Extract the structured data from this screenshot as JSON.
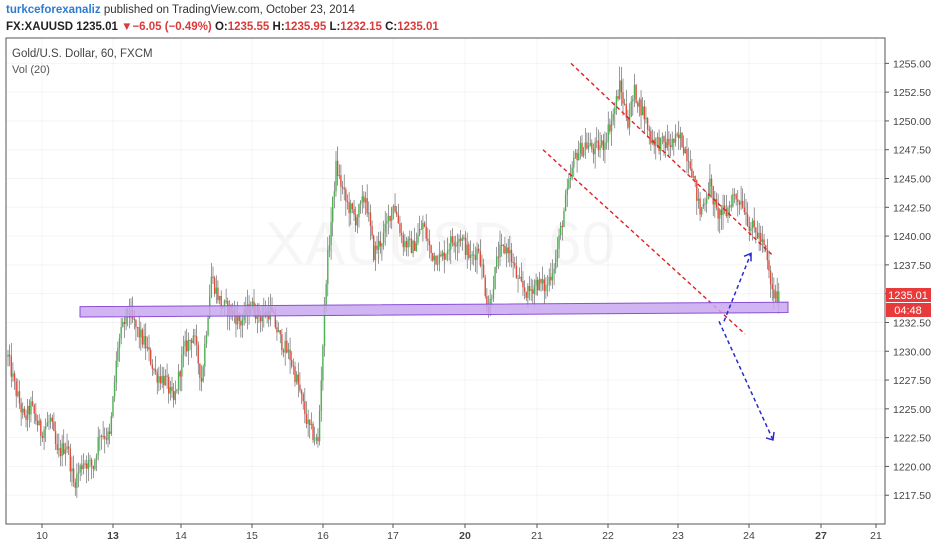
{
  "header": {
    "author": "turkceforexanaliz",
    "published_text": "published on TradingView.com, October 23, 2014",
    "symbol": "FX:XAUUSD",
    "last": "1235.01",
    "arrow": "▼",
    "change": "−6.05 (−0.49%)",
    "o_label": "O:",
    "o_value": "1235.55",
    "h_label": "H:",
    "h_value": "1235.95",
    "l_label": "L:",
    "l_value": "1232.15",
    "c_label": "C:",
    "c_value": "1235.01"
  },
  "chart_data": {
    "type": "candlestick",
    "title": "Gold/U.S. Dollar, 60, FXCM",
    "indicator": "Vol (20)",
    "watermark": "XAUUSD, 60",
    "ylim": [
      1215,
      1257.2
    ],
    "y_ticks": [
      1217.5,
      1220.0,
      1222.5,
      1225.0,
      1227.5,
      1230.0,
      1232.5,
      1235.0,
      1237.5,
      1240.0,
      1242.5,
      1245.0,
      1247.5,
      1250.0,
      1252.5,
      1255.0
    ],
    "x_ticks": [
      {
        "label": "10",
        "bold": false
      },
      {
        "label": "13",
        "bold": true
      },
      {
        "label": "14",
        "bold": false
      },
      {
        "label": "15",
        "bold": false
      },
      {
        "label": "16",
        "bold": false
      },
      {
        "label": "17",
        "bold": false
      },
      {
        "label": "20",
        "bold": true
      },
      {
        "label": "21",
        "bold": false
      },
      {
        "label": "22",
        "bold": false
      },
      {
        "label": "23",
        "bold": false
      },
      {
        "label": "24",
        "bold": false
      },
      {
        "label": "27",
        "bold": true
      },
      {
        "label": "21",
        "bold": false
      }
    ],
    "price_label": "1235.01",
    "countdown_label": "04:48",
    "colors": {
      "up": "#4caf50",
      "down": "#e04b3a",
      "channel": "#e02020",
      "projection": "#2a2acc",
      "support": "#c9a8f0",
      "support_border": "#8a4fd6",
      "price_box": "#e83a3a"
    },
    "close_path": [
      [
        0,
        1229.5
      ],
      [
        4,
        1227.0
      ],
      [
        10,
        1224.0
      ],
      [
        14,
        1225.2
      ],
      [
        20,
        1223.0
      ],
      [
        26,
        1224.0
      ],
      [
        30,
        1221.0
      ],
      [
        36,
        1222.0
      ],
      [
        40,
        1218.5
      ],
      [
        46,
        1220.5
      ],
      [
        52,
        1220.0
      ],
      [
        56,
        1223.0
      ],
      [
        62,
        1222.5
      ],
      [
        67,
        1230.5
      ],
      [
        73,
        1233.5
      ],
      [
        78,
        1232.0
      ],
      [
        84,
        1230.5
      ],
      [
        90,
        1228.0
      ],
      [
        96,
        1227.5
      ],
      [
        101,
        1225.5
      ],
      [
        107,
        1230.0
      ],
      [
        113,
        1231.5
      ],
      [
        118,
        1227.5
      ],
      [
        124,
        1236.5
      ],
      [
        130,
        1234.0
      ],
      [
        136,
        1233.5
      ],
      [
        142,
        1232.5
      ],
      [
        148,
        1234.0
      ],
      [
        154,
        1233.0
      ],
      [
        160,
        1233.5
      ],
      [
        166,
        1231.0
      ],
      [
        172,
        1229.5
      ],
      [
        177,
        1227.0
      ],
      [
        183,
        1223.5
      ],
      [
        189,
        1222.0
      ],
      [
        194,
        1236.5
      ],
      [
        200,
        1246.0
      ],
      [
        206,
        1243.0
      ],
      [
        212,
        1241.5
      ],
      [
        218,
        1243.5
      ],
      [
        223,
        1238.5
      ],
      [
        229,
        1240.0
      ],
      [
        235,
        1243.0
      ],
      [
        241,
        1239.5
      ],
      [
        247,
        1239.0
      ],
      [
        253,
        1241.0
      ],
      [
        258,
        1238.5
      ],
      [
        264,
        1238.0
      ],
      [
        270,
        1239.5
      ],
      [
        276,
        1240.0
      ],
      [
        282,
        1238.0
      ],
      [
        287,
        1239.0
      ],
      [
        293,
        1233.5
      ],
      [
        299,
        1238.5
      ],
      [
        305,
        1239.0
      ],
      [
        311,
        1236.0
      ],
      [
        317,
        1235.0
      ],
      [
        322,
        1236.0
      ],
      [
        328,
        1235.5
      ],
      [
        334,
        1238.0
      ],
      [
        340,
        1243.0
      ],
      [
        346,
        1247.0
      ],
      [
        352,
        1248.0
      ],
      [
        357,
        1247.5
      ],
      [
        363,
        1248.0
      ],
      [
        369,
        1250.5
      ],
      [
        373,
        1253.0
      ],
      [
        378,
        1250.0
      ],
      [
        382,
        1252.5
      ],
      [
        388,
        1250.5
      ],
      [
        392,
        1248.5
      ],
      [
        398,
        1248.0
      ],
      [
        404,
        1248.0
      ],
      [
        410,
        1248.5
      ],
      [
        416,
        1246.5
      ],
      [
        422,
        1242.0
      ],
      [
        428,
        1244.5
      ],
      [
        432,
        1242.0
      ],
      [
        438,
        1242.0
      ],
      [
        442,
        1243.5
      ],
      [
        448,
        1243.0
      ],
      [
        452,
        1241.0
      ],
      [
        458,
        1240.0
      ],
      [
        462,
        1238.5
      ],
      [
        466,
        1235.0
      ],
      [
        470,
        1234.5
      ]
    ],
    "channel_upper": [
      [
        1247.8,
        1255.0
      ],
      [
        1255.0,
        1238.3
      ]
    ],
    "channel_lower": [
      [
        1240.5,
        1247.5
      ],
      [
        1247.4,
        1231.5
      ]
    ],
    "support_band": [
      1233.1,
      1234.0
    ],
    "projection_up": {
      "from": 1232.6,
      "to": 1238.5
    },
    "projection_down": {
      "from": 1232.6,
      "to": 1222.3
    }
  }
}
